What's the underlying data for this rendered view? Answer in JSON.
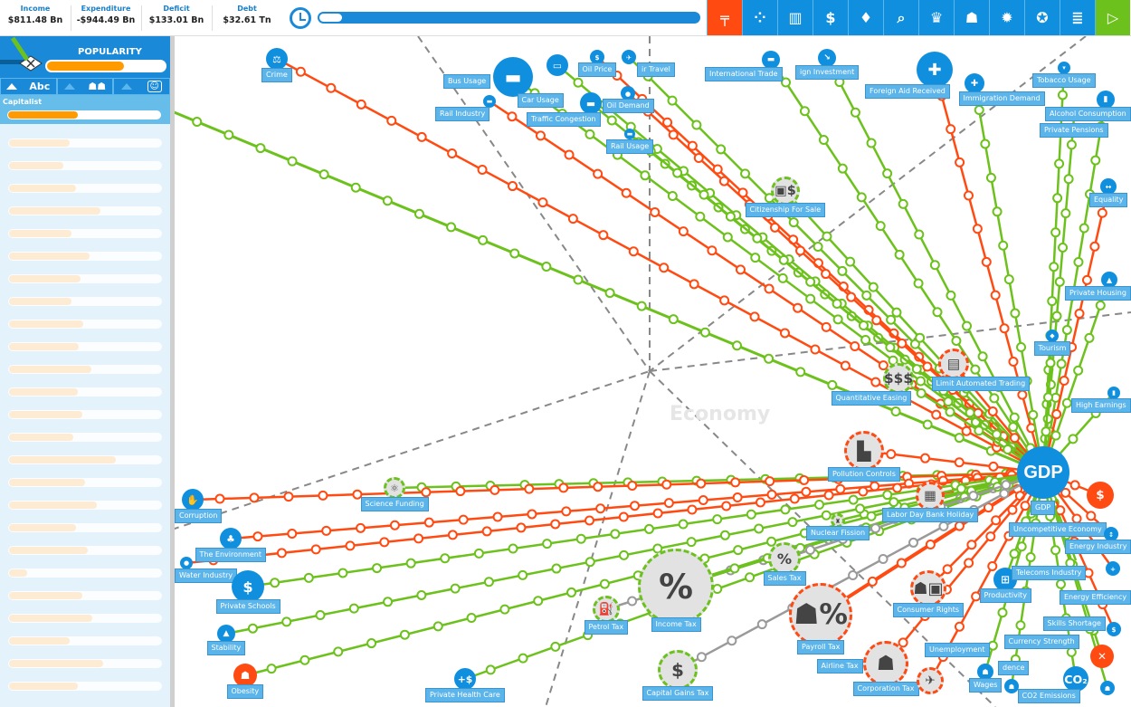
{
  "topbar": {
    "stats": [
      {
        "label": "Income",
        "value": "$811.48 Bn"
      },
      {
        "label": "Expenditure",
        "value": "-$944.49 Bn"
      },
      {
        "label": "Deficit",
        "value": "$133.01 Bn"
      },
      {
        "label": "Debt",
        "value": "$32.61 Tn"
      }
    ],
    "turn_progress_percent": 6,
    "toolbar": [
      {
        "icon": "gun-icon",
        "glyph": "╤",
        "color": "red"
      },
      {
        "icon": "groups-icon",
        "glyph": "⁘"
      },
      {
        "icon": "bar-chart-icon",
        "glyph": "▥"
      },
      {
        "icon": "dollar-icon",
        "glyph": "$"
      },
      {
        "icon": "lightbulb-icon",
        "glyph": "♦"
      },
      {
        "icon": "search-icon",
        "glyph": "⌕"
      },
      {
        "icon": "trophy-icon",
        "glyph": "♛"
      },
      {
        "icon": "people-icon",
        "glyph": "☗"
      },
      {
        "icon": "gear-icon",
        "glyph": "✹"
      },
      {
        "icon": "award-icon",
        "glyph": "✪"
      },
      {
        "icon": "document-icon",
        "glyph": "≣"
      },
      {
        "icon": "play-icon",
        "glyph": "▷",
        "color": "green"
      }
    ]
  },
  "sidebar": {
    "popularity_label": "POPULARITY",
    "popularity_percent": 65,
    "tab_sort_alpha": "Abc",
    "group_name": "Capitalist",
    "group_percent": 46,
    "faded_groups_percent": [
      40,
      36,
      44,
      60,
      41,
      53,
      47,
      41,
      49,
      46,
      54,
      45,
      48,
      42,
      70,
      50,
      58,
      44,
      52,
      12,
      48,
      55,
      40,
      62,
      45
    ]
  },
  "map": {
    "watermark": "Economy",
    "center": {
      "label": "GDP",
      "title": "GDP"
    },
    "colors": {
      "positive": "#6cc11c",
      "negative": "#ff4a12",
      "neutral": "#9a9a9a",
      "accent": "#0f8fde"
    },
    "nodes": [
      {
        "label": "Crime",
        "effect": "negative"
      },
      {
        "label": "Rail Industry",
        "effect": "negative"
      },
      {
        "label": "Car Usage",
        "effect": "positive"
      },
      {
        "label": "Bus Usage",
        "effect": "positive"
      },
      {
        "label": "Oil Price",
        "effect": "negative"
      },
      {
        "label": "ir Travel",
        "effect": "positive"
      },
      {
        "label": "Oil Demand",
        "effect": "negative"
      },
      {
        "label": "Traffic Congestion",
        "effect": "positive"
      },
      {
        "label": "Rail Usage",
        "effect": "positive"
      },
      {
        "label": "International Trade",
        "effect": "positive"
      },
      {
        "label": "ign Investment",
        "effect": "positive"
      },
      {
        "label": "Foreign Aid Received",
        "effect": "negative"
      },
      {
        "label": "Immigration Demand",
        "effect": "positive"
      },
      {
        "label": "Tobacco Usage",
        "effect": "positive"
      },
      {
        "label": "Alcohol Consumption",
        "effect": "positive"
      },
      {
        "label": "Private Pensions",
        "effect": "positive"
      },
      {
        "label": "Equality",
        "effect": "negative"
      },
      {
        "label": "Private Housing",
        "effect": "positive"
      },
      {
        "label": "Tourism",
        "effect": "positive"
      },
      {
        "label": "High Earnings",
        "effect": "positive"
      },
      {
        "label": "Citizenship For Sale",
        "effect": "positive"
      },
      {
        "label": "Quantitative Easing",
        "effect": "positive"
      },
      {
        "label": "Limit Automated Trading",
        "effect": "negative"
      },
      {
        "label": "Pollution Controls",
        "effect": "negative"
      },
      {
        "label": "Labor Day Bank Holiday",
        "effect": "negative"
      },
      {
        "label": "Nuclear Fission",
        "effect": "positive"
      },
      {
        "label": "Science Funding",
        "effect": "positive"
      },
      {
        "label": "Corruption",
        "effect": "negative"
      },
      {
        "label": "The Environment",
        "effect": "negative"
      },
      {
        "label": "Water Industry",
        "effect": "negative"
      },
      {
        "label": "Private Schools",
        "effect": "positive"
      },
      {
        "label": "Stability",
        "effect": "positive"
      },
      {
        "label": "Obesity",
        "effect": "positive"
      },
      {
        "label": "Private Health Care",
        "effect": "positive"
      },
      {
        "label": "Petrol Tax",
        "effect": "neutral"
      },
      {
        "label": "Income Tax",
        "effect": "positive"
      },
      {
        "label": "Sales Tax",
        "effect": "neutral"
      },
      {
        "label": "Payroll Tax",
        "effect": "negative"
      },
      {
        "label": "Capital Gains Tax",
        "effect": "neutral"
      },
      {
        "label": "Consumer Rights",
        "effect": "negative"
      },
      {
        "label": "Corporation Tax",
        "effect": "negative"
      },
      {
        "label": "Airline Tax",
        "effect": "negative"
      },
      {
        "label": "Wages",
        "effect": "positive"
      },
      {
        "label": "Unemployment",
        "effect": "positive"
      },
      {
        "label": "Productivity",
        "effect": "positive"
      },
      {
        "label": "CO2 Emissions",
        "effect": "positive"
      },
      {
        "label": "Uncompetitive Economy",
        "effect": "negative"
      },
      {
        "label": "Energy Industry",
        "effect": "negative"
      },
      {
        "label": "Telecoms Industry",
        "effect": "positive"
      },
      {
        "label": "Energy Efficiency",
        "effect": "negative"
      },
      {
        "label": "Currency Strength",
        "effect": "negative"
      },
      {
        "label": "Skills Shortage",
        "effect": "positive"
      },
      {
        "label": "dence",
        "effect": "positive"
      }
    ]
  }
}
